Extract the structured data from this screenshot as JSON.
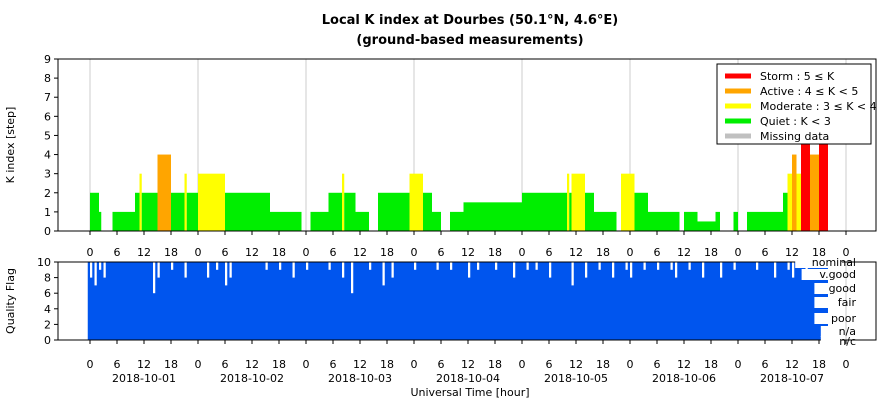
{
  "chart_data": [
    {
      "type": "bar",
      "title": "Local K index at Dourbes (50.1°N, 4.6°E)",
      "subtitle": "(ground-based measurements)",
      "ylabel": "K index [step]",
      "ylim": [
        0,
        9
      ],
      "yticks": [
        "0",
        "1",
        "2",
        "3",
        "4",
        "5",
        "6",
        "7",
        "8",
        "9"
      ],
      "xlim_hours": [
        0,
        171
      ],
      "bar_width_hours": 0.5,
      "grid": true,
      "legend_position": "top-right",
      "legend": [
        {
          "key": "storm",
          "label": "Storm : 5 ≤ K",
          "color": "#ff0000"
        },
        {
          "key": "active",
          "label": "Active : 4 ≤ K < 5",
          "color": "#ffa500"
        },
        {
          "key": "moderate",
          "label": "Moderate : 3 ≤ K < 4",
          "color": "#ffff00"
        },
        {
          "key": "quiet",
          "label": "Quiet : K < 3",
          "color": "#00ee00"
        },
        {
          "key": "missing",
          "label": "Missing data",
          "color": "#c0c0c0"
        }
      ],
      "x_hour_ticks": [
        "0",
        "6",
        "12",
        "18",
        "0",
        "6",
        "12",
        "18",
        "0",
        "6",
        "12",
        "18",
        "0",
        "6",
        "12",
        "18",
        "0",
        "6",
        "12",
        "18",
        "0",
        "6",
        "12",
        "18",
        "0",
        "6",
        "12",
        "18",
        "0"
      ],
      "segments": [
        [
          0,
          2,
          2
        ],
        [
          2,
          2.5,
          1
        ],
        [
          5,
          10,
          1
        ],
        [
          10,
          11,
          2
        ],
        [
          11,
          11.5,
          3
        ],
        [
          11.5,
          15,
          2
        ],
        [
          15,
          18,
          4
        ],
        [
          18,
          21,
          2
        ],
        [
          21,
          21.5,
          3
        ],
        [
          21.5,
          24,
          2
        ],
        [
          24,
          30,
          3
        ],
        [
          30,
          40,
          2
        ],
        [
          40,
          47,
          1
        ],
        [
          49,
          53,
          1
        ],
        [
          53,
          56,
          2
        ],
        [
          56,
          56.5,
          3
        ],
        [
          56.5,
          59,
          2
        ],
        [
          59,
          62,
          1
        ],
        [
          64,
          71,
          2
        ],
        [
          71,
          74,
          3
        ],
        [
          74,
          76,
          2
        ],
        [
          76,
          78,
          1
        ],
        [
          80,
          83,
          1
        ],
        [
          83,
          96,
          1.5
        ],
        [
          96,
          106,
          2
        ],
        [
          106,
          106.5,
          3
        ],
        [
          106.5,
          107,
          2
        ],
        [
          107,
          110,
          3
        ],
        [
          110,
          112,
          2
        ],
        [
          112,
          117,
          1
        ],
        [
          118,
          121,
          3
        ],
        [
          121,
          124,
          2
        ],
        [
          124,
          126,
          1
        ],
        [
          126,
          131,
          1
        ],
        [
          132,
          135,
          1
        ],
        [
          135,
          139,
          0.5
        ],
        [
          139,
          140,
          1
        ],
        [
          143,
          144,
          1
        ],
        [
          146,
          154,
          1
        ],
        [
          154,
          155,
          2
        ],
        [
          155,
          156,
          3
        ],
        [
          156,
          157,
          4
        ],
        [
          157,
          158,
          3
        ],
        [
          158,
          160,
          5
        ],
        [
          160,
          162,
          4
        ],
        [
          162,
          164,
          5
        ]
      ]
    },
    {
      "type": "bar",
      "ylabel": "Quality Flag",
      "ylim": [
        0,
        10
      ],
      "yticks": [
        "0",
        "2",
        "4",
        "6",
        "8",
        "10"
      ],
      "flag_labels": [
        "nominal",
        "v.good",
        "good",
        "fair",
        "poor",
        "n/a",
        "n/c"
      ],
      "xlabel": "Universal Time [hour]",
      "x_hour_ticks": [
        "0",
        "6",
        "12",
        "18",
        "0",
        "6",
        "12",
        "18",
        "0",
        "6",
        "12",
        "18",
        "0",
        "6",
        "12",
        "18",
        "0",
        "6",
        "12",
        "18",
        "0",
        "6",
        "12",
        "18",
        "0",
        "6",
        "12",
        "18",
        "0"
      ],
      "date_labels": [
        "2018-10-01",
        "2018-10-02",
        "2018-10-03",
        "2018-10-04",
        "2018-10-05",
        "2018-10-06",
        "2018-10-07"
      ],
      "base_value": 10,
      "dips": [
        [
          0,
          8
        ],
        [
          1,
          7
        ],
        [
          2,
          9
        ],
        [
          3,
          8
        ],
        [
          14,
          6
        ],
        [
          15,
          8
        ],
        [
          18,
          9
        ],
        [
          21,
          8
        ],
        [
          26,
          8
        ],
        [
          28,
          9
        ],
        [
          30,
          7
        ],
        [
          31,
          8
        ],
        [
          39,
          9
        ],
        [
          42,
          9
        ],
        [
          45,
          8
        ],
        [
          48,
          9
        ],
        [
          53,
          9
        ],
        [
          56,
          8
        ],
        [
          58,
          6
        ],
        [
          62,
          9
        ],
        [
          65,
          7
        ],
        [
          67,
          8
        ],
        [
          72,
          9
        ],
        [
          77,
          9
        ],
        [
          80,
          9
        ],
        [
          84,
          8
        ],
        [
          86,
          9
        ],
        [
          90,
          9
        ],
        [
          94,
          8
        ],
        [
          97,
          9
        ],
        [
          99,
          9
        ],
        [
          102,
          8
        ],
        [
          107,
          7
        ],
        [
          110,
          8
        ],
        [
          113,
          9
        ],
        [
          116,
          8
        ],
        [
          119,
          9
        ],
        [
          120,
          8
        ],
        [
          123,
          9
        ],
        [
          126,
          9
        ],
        [
          129,
          9
        ],
        [
          130,
          8
        ],
        [
          133,
          9
        ],
        [
          136,
          8
        ],
        [
          140,
          8
        ],
        [
          143,
          9
        ],
        [
          148,
          9
        ],
        [
          152,
          8
        ],
        [
          155,
          9
        ],
        [
          156,
          8
        ],
        [
          159,
          9
        ]
      ]
    }
  ]
}
